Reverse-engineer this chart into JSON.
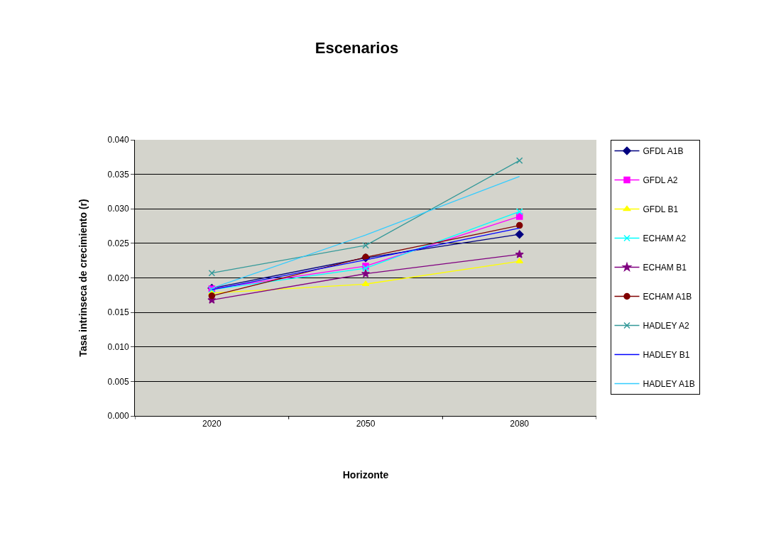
{
  "chart_data": {
    "type": "line",
    "title": "Escenarios",
    "xlabel": "Horizonte",
    "ylabel": "Tasa intrinseca de crecimiento (r)",
    "categories": [
      "2020",
      "2050",
      "2080"
    ],
    "ylim": [
      0,
      0.04
    ],
    "yticks": [
      {
        "value": 0,
        "label": "0.000"
      },
      {
        "value": 0.005,
        "label": "0.005"
      },
      {
        "value": 0.01,
        "label": "0.010"
      },
      {
        "value": 0.015,
        "label": "0.015"
      },
      {
        "value": 0.02,
        "label": "0.020"
      },
      {
        "value": 0.025,
        "label": "0.025"
      },
      {
        "value": 0.03,
        "label": "0.030"
      },
      {
        "value": 0.035,
        "label": "0.035"
      },
      {
        "value": 0.04,
        "label": "0.040"
      }
    ],
    "grid": "y",
    "legend": "right",
    "series": [
      {
        "name": "GFDL A1B",
        "color": "#000080",
        "marker": "diamond",
        "values": [
          0.0185,
          0.0229,
          0.0263
        ]
      },
      {
        "name": "GFDL A2",
        "color": "#ff00ff",
        "marker": "square",
        "values": [
          0.0184,
          0.0217,
          0.0289
        ]
      },
      {
        "name": "GFDL B1",
        "color": "#ffff00",
        "marker": "triangle",
        "values": [
          0.0178,
          0.0191,
          0.0224
        ]
      },
      {
        "name": "ECHAM A2",
        "color": "#00ffff",
        "marker": "cross",
        "values": [
          0.0183,
          0.0214,
          0.0296
        ]
      },
      {
        "name": "ECHAM B1",
        "color": "#800080",
        "marker": "star",
        "values": [
          0.0168,
          0.0206,
          0.0234
        ]
      },
      {
        "name": "ECHAM A1B",
        "color": "#800000",
        "marker": "circle",
        "values": [
          0.0174,
          0.023,
          0.0276
        ]
      },
      {
        "name": "HADLEY A2",
        "color": "#339999",
        "marker": "cross",
        "values": [
          0.0207,
          0.0247,
          0.037
        ]
      },
      {
        "name": "HADLEY B1",
        "color": "#0000ff",
        "marker": "none",
        "values": [
          0.0183,
          0.0226,
          0.0272
        ]
      },
      {
        "name": "HADLEY A1B",
        "color": "#33ccff",
        "marker": "none",
        "values": [
          0.0185,
          0.0262,
          0.0347
        ]
      }
    ]
  }
}
